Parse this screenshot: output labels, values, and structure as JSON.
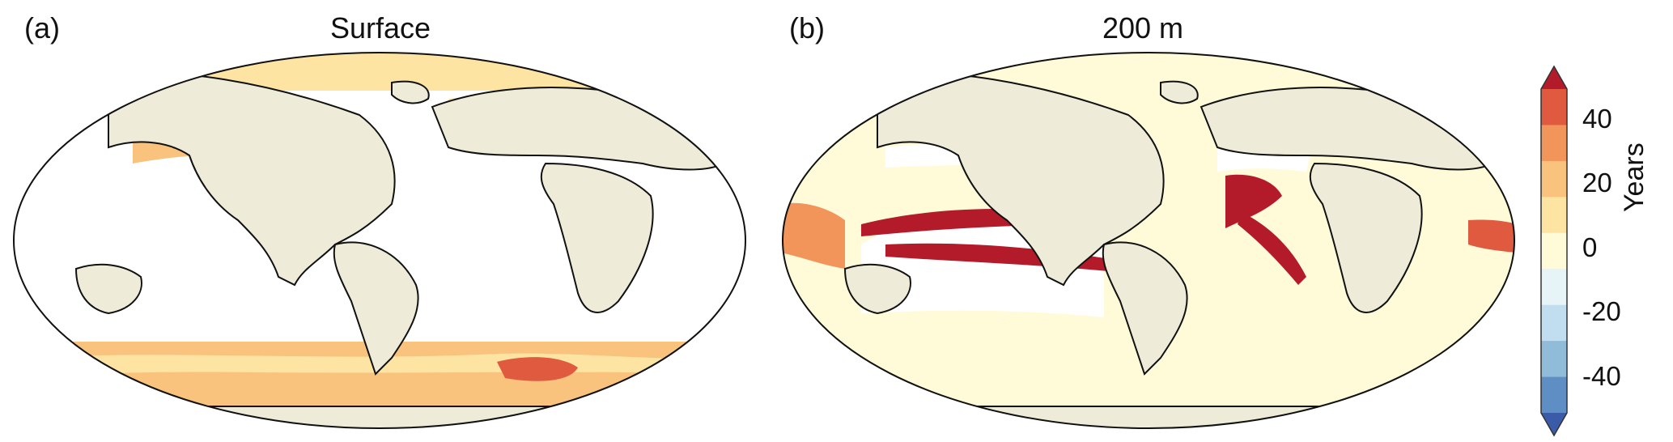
{
  "panels": [
    {
      "label": "(a)",
      "title": "Surface"
    },
    {
      "label": "(b)",
      "title": "200 m"
    }
  ],
  "colorbar": {
    "label": "Years",
    "ticks": [
      "40",
      "20",
      "0",
      "-20",
      "-40"
    ],
    "range": [
      -50,
      50
    ],
    "colors": [
      "#3a5ba8",
      "#5e8ec4",
      "#90bcd9",
      "#c1def0",
      "#e6f3f7",
      "#fffbd8",
      "#fde4a3",
      "#f9c27d",
      "#f1955b",
      "#df5a3f",
      "#b31b2b"
    ]
  },
  "colors": {
    "land": "#eeecd9",
    "ocean_nodata": "#ffffff",
    "coastline": "#111111"
  }
}
